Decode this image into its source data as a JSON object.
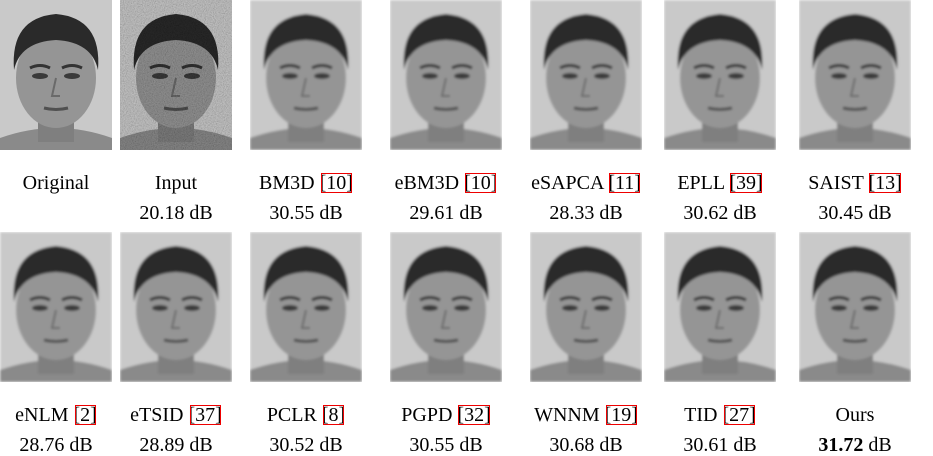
{
  "figure": {
    "rows": [
      [
        {
          "name": "Original"
        },
        {
          "name": "Input",
          "psnr": "20.18",
          "unit": "dB"
        },
        {
          "name": "BM3D",
          "cite": "[10]",
          "psnr": "30.55",
          "unit": "dB"
        },
        {
          "name": "eBM3D",
          "cite": "[10]",
          "psnr": "29.61",
          "unit": "dB"
        },
        {
          "name": "eSAPCA",
          "cite": "[11]",
          "psnr": "28.33",
          "unit": "dB"
        },
        {
          "name": "EPLL",
          "cite": "[39]",
          "psnr": "30.62",
          "unit": "dB"
        },
        {
          "name": "SAIST",
          "cite": "[13]",
          "psnr": "30.45",
          "unit": "dB"
        }
      ],
      [
        {
          "name": "eNLM",
          "cite": "[2]",
          "psnr": "28.76",
          "unit": "dB"
        },
        {
          "name": "eTSID",
          "cite": "[37]",
          "psnr": "28.89",
          "unit": "dB"
        },
        {
          "name": "PCLR",
          "cite": "[8]",
          "psnr": "30.52",
          "unit": "dB"
        },
        {
          "name": "PGPD",
          "cite": "[32]",
          "psnr": "30.55",
          "unit": "dB"
        },
        {
          "name": "WNNM",
          "cite": "[19]",
          "psnr": "30.68",
          "unit": "dB"
        },
        {
          "name": "TID",
          "cite": "[27]",
          "psnr": "30.61",
          "unit": "dB"
        },
        {
          "name": "Ours",
          "psnr": "31.72",
          "unit": "dB",
          "bold": true
        }
      ]
    ]
  }
}
